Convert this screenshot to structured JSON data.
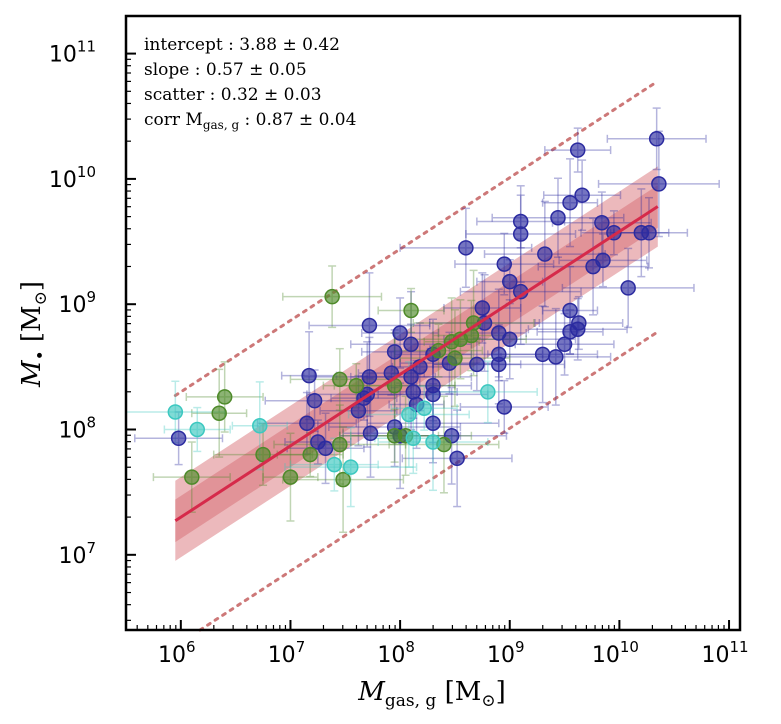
{
  "chart_data": {
    "type": "scatter",
    "xlabel": {
      "main": "M",
      "sub": "gas, g",
      "unit": "[M",
      "unit_sub": "⊙",
      "unit_close": "]"
    },
    "ylabel": {
      "main": "M",
      "sub": "•",
      "unit": "[M",
      "unit_sub": "⊙",
      "unit_close": "]"
    },
    "xlim_log10": [
      5.5,
      11.1
    ],
    "ylim_log10": [
      6.4,
      11.3
    ],
    "x_ticks": [
      {
        "exp": 6,
        "label": "10",
        "power": "6"
      },
      {
        "exp": 7,
        "label": "10",
        "power": "7"
      },
      {
        "exp": 8,
        "label": "10",
        "power": "8"
      },
      {
        "exp": 9,
        "label": "10",
        "power": "9"
      },
      {
        "exp": 10,
        "label": "10",
        "power": "10"
      },
      {
        "exp": 11,
        "label": "10",
        "power": "11"
      }
    ],
    "y_ticks": [
      {
        "exp": 7,
        "label": "10",
        "power": "7"
      },
      {
        "exp": 8,
        "label": "10",
        "power": "8"
      },
      {
        "exp": 9,
        "label": "10",
        "power": "9"
      },
      {
        "exp": 10,
        "label": "10",
        "power": "10"
      },
      {
        "exp": 11,
        "label": "10",
        "power": "11"
      }
    ],
    "fit": {
      "intercept": 3.88,
      "slope": 0.57,
      "scatter": 0.32,
      "x_range_log10": [
        5.95,
        10.35
      ],
      "inner_band_dex": 0.17,
      "outer_band_dex": 0.32,
      "dotted_offset_dex": 1.0
    },
    "stats": [
      {
        "label": "intercept",
        "value": "3.88 ± 0.42"
      },
      {
        "label": "slope",
        "value": "0.57 ± 0.05"
      },
      {
        "label": "scatter",
        "value": "0.32 ± 0.03"
      },
      {
        "label": "corr M",
        "label_sub": "gas, g",
        "value": "0.87 ± 0.04"
      }
    ],
    "colors": {
      "blue": "#2b2ba0",
      "green": "#4e8a2a",
      "cyan": "#3cc8c0",
      "fit_line": "#d62a4a",
      "band": "#d9747a",
      "dotted": "#cd7878"
    },
    "series": [
      {
        "name": "blue",
        "points": [
          [
            10.34,
            10.32
          ],
          [
            9.62,
            10.23
          ],
          [
            10.36,
            9.96
          ],
          [
            9.66,
            9.87
          ],
          [
            9.55,
            9.81
          ],
          [
            9.44,
            9.69
          ],
          [
            9.1,
            9.66
          ],
          [
            9.1,
            9.56
          ],
          [
            9.84,
            9.65
          ],
          [
            9.95,
            9.57
          ],
          [
            9.32,
            9.4
          ],
          [
            10.27,
            9.57
          ],
          [
            10.2,
            9.57
          ],
          [
            8.6,
            9.45
          ],
          [
            9.85,
            9.35
          ],
          [
            9.76,
            9.3
          ],
          [
            8.95,
            9.32
          ],
          [
            9.0,
            9.18
          ],
          [
            9.1,
            9.1
          ],
          [
            8.75,
            8.97
          ],
          [
            9.55,
            8.95
          ],
          [
            10.08,
            9.13
          ],
          [
            9.63,
            8.85
          ],
          [
            8.77,
            8.85
          ],
          [
            9.62,
            8.8
          ],
          [
            9.55,
            8.78
          ],
          [
            7.72,
            8.83
          ],
          [
            8.0,
            8.77
          ],
          [
            8.9,
            8.77
          ],
          [
            9.0,
            8.72
          ],
          [
            8.9,
            8.6
          ],
          [
            9.3,
            8.6
          ],
          [
            9.5,
            8.68
          ],
          [
            7.95,
            8.62
          ],
          [
            8.1,
            8.68
          ],
          [
            8.3,
            8.6
          ],
          [
            8.18,
            8.5
          ],
          [
            8.9,
            8.52
          ],
          [
            8.7,
            8.52
          ],
          [
            9.42,
            8.58
          ],
          [
            8.45,
            8.53
          ],
          [
            7.92,
            8.45
          ],
          [
            8.1,
            8.42
          ],
          [
            8.3,
            8.35
          ],
          [
            7.17,
            8.43
          ],
          [
            7.72,
            8.42
          ],
          [
            8.12,
            8.3
          ],
          [
            8.3,
            8.28
          ],
          [
            7.22,
            8.23
          ],
          [
            7.67,
            8.25
          ],
          [
            7.7,
            8.28
          ],
          [
            7.62,
            8.15
          ],
          [
            8.15,
            8.2
          ],
          [
            8.3,
            8.05
          ],
          [
            8.95,
            8.18
          ],
          [
            8.47,
            7.95
          ],
          [
            7.15,
            8.05
          ],
          [
            7.25,
            7.9
          ],
          [
            8.0,
            7.95
          ],
          [
            7.32,
            7.85
          ],
          [
            7.73,
            7.97
          ],
          [
            7.95,
            8.02
          ],
          [
            5.98,
            7.93
          ],
          [
            8.52,
            7.77
          ]
        ]
      },
      {
        "name": "green",
        "points": [
          [
            7.38,
            9.06
          ],
          [
            8.1,
            8.95
          ],
          [
            8.67,
            8.85
          ],
          [
            8.65,
            8.75
          ],
          [
            8.47,
            8.7
          ],
          [
            8.55,
            8.72
          ],
          [
            8.35,
            8.63
          ],
          [
            8.5,
            8.57
          ],
          [
            7.45,
            8.4
          ],
          [
            7.6,
            8.35
          ],
          [
            7.95,
            8.35
          ],
          [
            6.4,
            8.26
          ],
          [
            6.35,
            8.13
          ],
          [
            7.45,
            7.88
          ],
          [
            7.95,
            7.95
          ],
          [
            8.4,
            7.88
          ],
          [
            6.75,
            7.8
          ],
          [
            7.18,
            7.8
          ],
          [
            7.48,
            7.6
          ],
          [
            6.1,
            7.62
          ],
          [
            7.0,
            7.62
          ],
          [
            8.05,
            7.95
          ]
        ]
      },
      {
        "name": "cyan",
        "points": [
          [
            5.95,
            8.14
          ],
          [
            8.22,
            8.17
          ],
          [
            8.08,
            8.12
          ],
          [
            8.12,
            7.93
          ],
          [
            6.72,
            8.03
          ],
          [
            7.55,
            7.7
          ],
          [
            7.4,
            7.72
          ],
          [
            8.3,
            7.9
          ],
          [
            8.8,
            8.3
          ],
          [
            6.15,
            8.0
          ]
        ]
      }
    ]
  }
}
